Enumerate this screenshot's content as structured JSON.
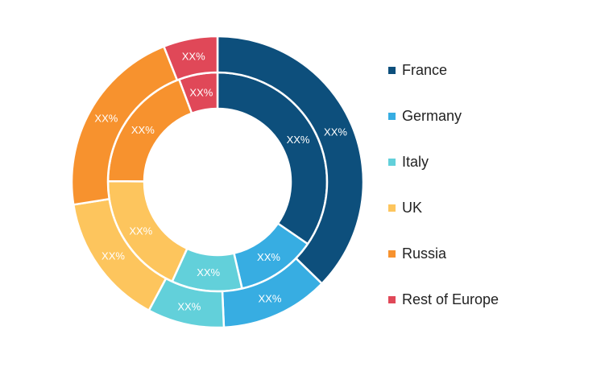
{
  "chart_data": {
    "type": "donut",
    "title": "",
    "categories": [
      "France",
      "Germany",
      "Italy",
      "UK",
      "Russia",
      "Rest of Europe"
    ],
    "colors": [
      "#0d4f7c",
      "#37ade2",
      "#62d0da",
      "#fdc55d",
      "#f7922e",
      "#e04858"
    ],
    "series": [
      {
        "values": [
          34.6,
          11.8,
          10.4,
          18.3,
          19.2,
          5.7
        ],
        "labels": [
          "XX%",
          "XX%",
          "XX%",
          "XX%",
          "XX%",
          "XX%"
        ]
      },
      {
        "values": [
          37.3,
          12.0,
          8.5,
          14.7,
          21.5,
          6.0
        ],
        "labels": [
          "XX%",
          "XX%",
          "XX%",
          "XX%",
          "XX%",
          "XX%"
        ]
      }
    ],
    "legend_position": "right"
  }
}
